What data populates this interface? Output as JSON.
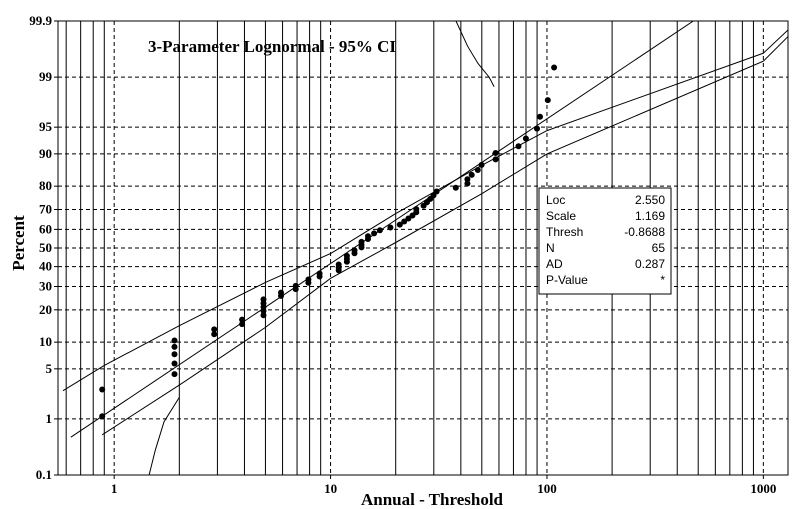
{
  "chart_data": {
    "type": "scatter",
    "title": "3-Parameter Lognormal - 95% CI",
    "xlabel": "Annual - Threshold",
    "ylabel": "Percent",
    "x_scale": "log",
    "y_scale": "lognormal-probability",
    "xlim": [
      0.55,
      1300
    ],
    "ylim": [
      0.1,
      99.9
    ],
    "x_ticks": [
      {
        "v": 1,
        "label": "1"
      },
      {
        "v": 10,
        "label": "10"
      },
      {
        "v": 100,
        "label": "100"
      },
      {
        "v": 1000,
        "label": "1000"
      }
    ],
    "y_ticks": [
      {
        "v": 0.1,
        "label": "0.1"
      },
      {
        "v": 1,
        "label": "1"
      },
      {
        "v": 5,
        "label": "5"
      },
      {
        "v": 10,
        "label": "10"
      },
      {
        "v": 20,
        "label": "20"
      },
      {
        "v": 30,
        "label": "30"
      },
      {
        "v": 40,
        "label": "40"
      },
      {
        "v": 50,
        "label": "50"
      },
      {
        "v": 60,
        "label": "60"
      },
      {
        "v": 70,
        "label": "70"
      },
      {
        "v": 80,
        "label": "80"
      },
      {
        "v": 90,
        "label": "90"
      },
      {
        "v": 95,
        "label": "95"
      },
      {
        "v": 99,
        "label": "99"
      },
      {
        "v": 99.9,
        "label": "99.9"
      }
    ],
    "grid": true,
    "fit": {
      "mu": 2.55,
      "sigma": 1.169
    },
    "ci_bounds": {
      "upper": [
        [
          0.58,
          2.6
        ],
        [
          0.9,
          5.5
        ],
        [
          2,
          14.5
        ],
        [
          5,
          32
        ],
        [
          10,
          47
        ],
        [
          20,
          68
        ],
        [
          50,
          87
        ],
        [
          100,
          94.5
        ],
        [
          1000,
          99.6
        ],
        [
          1300,
          99.85
        ]
      ],
      "lower": [
        [
          0.88,
          0.55
        ],
        [
          2,
          3.1
        ],
        [
          5,
          14
        ],
        [
          10,
          34
        ],
        [
          20,
          53
        ],
        [
          50,
          77
        ],
        [
          100,
          90
        ],
        [
          1000,
          99.45
        ],
        [
          1300,
          99.8
        ]
      ],
      "lower_tail": [
        [
          1.45,
          0.1
        ],
        [
          1.55,
          0.3
        ],
        [
          1.7,
          0.9
        ],
        [
          2.0,
          2.1
        ]
      ],
      "upper_tail": [
        [
          38,
          99.9
        ],
        [
          43,
          99.7
        ],
        [
          48,
          99.4
        ],
        [
          54,
          99.0
        ],
        [
          57,
          98.6
        ]
      ]
    },
    "points": [
      [
        0.88,
        1.1
      ],
      [
        0.88,
        2.7
      ],
      [
        1.9,
        4.3
      ],
      [
        1.9,
        5.8
      ],
      [
        1.9,
        7.4
      ],
      [
        1.9,
        8.9
      ],
      [
        1.9,
        10.4
      ],
      [
        2.9,
        12
      ],
      [
        2.9,
        13.4
      ],
      [
        3.9,
        15
      ],
      [
        3.9,
        16.5
      ],
      [
        4.9,
        18
      ],
      [
        4.9,
        19.6
      ],
      [
        4.9,
        21.1
      ],
      [
        4.9,
        22.6
      ],
      [
        4.9,
        24.2
      ],
      [
        5.9,
        25.7
      ],
      [
        5.9,
        27.2
      ],
      [
        6.9,
        28.8
      ],
      [
        6.9,
        30.3
      ],
      [
        7.9,
        31.8
      ],
      [
        7.9,
        33.4
      ],
      [
        8.9,
        34.9
      ],
      [
        8.9,
        36.4
      ],
      [
        10.9,
        38
      ],
      [
        10.9,
        39.5
      ],
      [
        10.9,
        41.1
      ],
      [
        11.9,
        42.6
      ],
      [
        11.9,
        44.1
      ],
      [
        11.9,
        45.7
      ],
      [
        12.9,
        47.2
      ],
      [
        12.9,
        48.7
      ],
      [
        13.9,
        50.3
      ],
      [
        13.9,
        51.8
      ],
      [
        13.9,
        53.3
      ],
      [
        14.9,
        54.9
      ],
      [
        14.9,
        56.4
      ],
      [
        15.9,
        57.9
      ],
      [
        16.9,
        59.5
      ],
      [
        18.9,
        61
      ],
      [
        20.9,
        62.5
      ],
      [
        21.9,
        64.1
      ],
      [
        22.9,
        65.6
      ],
      [
        23.9,
        67.1
      ],
      [
        24.9,
        68.7
      ],
      [
        24.9,
        70.2
      ],
      [
        26.9,
        71.7
      ],
      [
        27.9,
        73.3
      ],
      [
        28.9,
        74.8
      ],
      [
        29.9,
        76.3
      ],
      [
        30.9,
        77.9
      ],
      [
        37.9,
        79.4
      ],
      [
        42.9,
        81
      ],
      [
        42.9,
        82.5
      ],
      [
        44.9,
        84
      ],
      [
        47.9,
        85.6
      ],
      [
        49.9,
        87.1
      ],
      [
        57.9,
        88.6
      ],
      [
        57.9,
        90.2
      ],
      [
        73.9,
        91.7
      ],
      [
        79.9,
        93.2
      ],
      [
        89.9,
        94.8
      ],
      [
        92.9,
        96.3
      ],
      [
        100.9,
        97.8
      ],
      [
        107.9,
        99.3
      ]
    ],
    "stats": [
      {
        "label": "Loc",
        "value": "2.550"
      },
      {
        "label": "Scale",
        "value": "1.169"
      },
      {
        "label": "Thresh",
        "value": "-0.8688"
      },
      {
        "label": "N",
        "value": "65"
      },
      {
        "label": "AD",
        "value": "0.287"
      },
      {
        "label": "P-Value",
        "value": "*"
      }
    ]
  }
}
